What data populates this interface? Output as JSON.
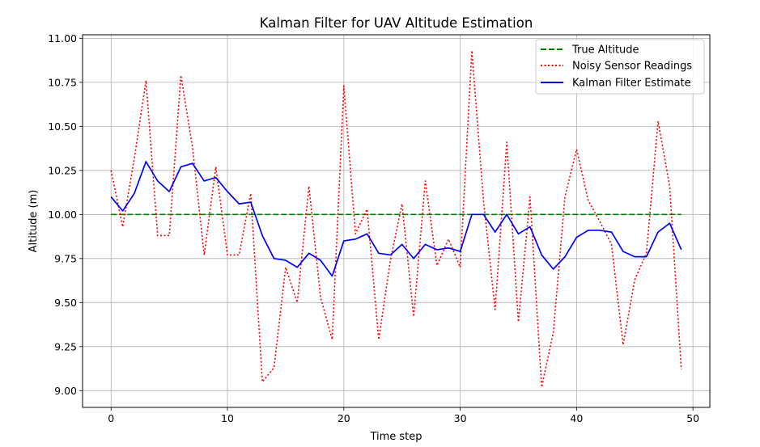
{
  "chart_data": {
    "type": "line",
    "title": "Kalman Filter for UAV Altitude Estimation",
    "xlabel": "Time step",
    "ylabel": "Altitude (m)",
    "xlim": [
      -2.45,
      51.45
    ],
    "ylim": [
      8.905,
      11.02
    ],
    "xticks": [
      0,
      10,
      20,
      30,
      40,
      50
    ],
    "yticks": [
      9.0,
      9.25,
      9.5,
      9.75,
      10.0,
      10.25,
      10.5,
      10.75,
      11.0
    ],
    "xtick_labels": [
      "0",
      "10",
      "20",
      "30",
      "40",
      "50"
    ],
    "ytick_labels": [
      "9.00",
      "9.25",
      "9.50",
      "9.75",
      "10.00",
      "10.25",
      "10.50",
      "10.75",
      "11.00"
    ],
    "grid": true,
    "legend_position": "top-right",
    "x": [
      0,
      1,
      2,
      3,
      4,
      5,
      6,
      7,
      8,
      9,
      10,
      11,
      12,
      13,
      14,
      15,
      16,
      17,
      18,
      19,
      20,
      21,
      22,
      23,
      24,
      25,
      26,
      27,
      28,
      29,
      30,
      31,
      32,
      33,
      34,
      35,
      36,
      37,
      38,
      39,
      40,
      41,
      42,
      43,
      44,
      45,
      46,
      47,
      48,
      49
    ],
    "series": [
      {
        "name": "True Altitude",
        "color": "#008000",
        "style": "dashed",
        "values": [
          10.0,
          10.0,
          10.0,
          10.0,
          10.0,
          10.0,
          10.0,
          10.0,
          10.0,
          10.0,
          10.0,
          10.0,
          10.0,
          10.0,
          10.0,
          10.0,
          10.0,
          10.0,
          10.0,
          10.0,
          10.0,
          10.0,
          10.0,
          10.0,
          10.0,
          10.0,
          10.0,
          10.0,
          10.0,
          10.0,
          10.0,
          10.0,
          10.0,
          10.0,
          10.0,
          10.0,
          10.0,
          10.0,
          10.0,
          10.0,
          10.0,
          10.0,
          10.0,
          10.0,
          10.0,
          10.0,
          10.0,
          10.0,
          10.0,
          10.0
        ]
      },
      {
        "name": "Noisy Sensor Readings",
        "color": "#ff0000",
        "style": "dotted",
        "values": [
          10.25,
          9.93,
          10.32,
          10.76,
          9.88,
          9.88,
          10.79,
          10.38,
          9.77,
          10.27,
          9.77,
          9.77,
          10.12,
          9.05,
          9.13,
          9.7,
          9.5,
          10.16,
          9.53,
          9.29,
          10.73,
          9.89,
          10.03,
          9.29,
          9.74,
          10.06,
          9.42,
          10.19,
          9.71,
          9.86,
          9.7,
          10.93,
          10.08,
          9.46,
          10.41,
          9.39,
          10.1,
          9.02,
          9.33,
          10.1,
          10.37,
          10.08,
          9.96,
          9.83,
          9.26,
          9.63,
          9.78,
          10.53,
          10.16,
          9.12
        ]
      },
      {
        "name": "Kalman Filter Estimate",
        "color": "#0000ff",
        "style": "solid",
        "values": [
          10.1,
          10.02,
          10.12,
          10.3,
          10.19,
          10.13,
          10.27,
          10.29,
          10.19,
          10.21,
          10.13,
          10.06,
          10.07,
          9.88,
          9.75,
          9.74,
          9.7,
          9.78,
          9.74,
          9.65,
          9.85,
          9.86,
          9.89,
          9.78,
          9.77,
          9.83,
          9.75,
          9.83,
          9.8,
          9.81,
          9.79,
          10.0,
          10.0,
          9.9,
          10.0,
          9.89,
          9.93,
          9.77,
          9.69,
          9.76,
          9.87,
          9.91,
          9.91,
          9.9,
          9.79,
          9.76,
          9.76,
          9.9,
          9.95,
          9.8
        ]
      }
    ]
  }
}
